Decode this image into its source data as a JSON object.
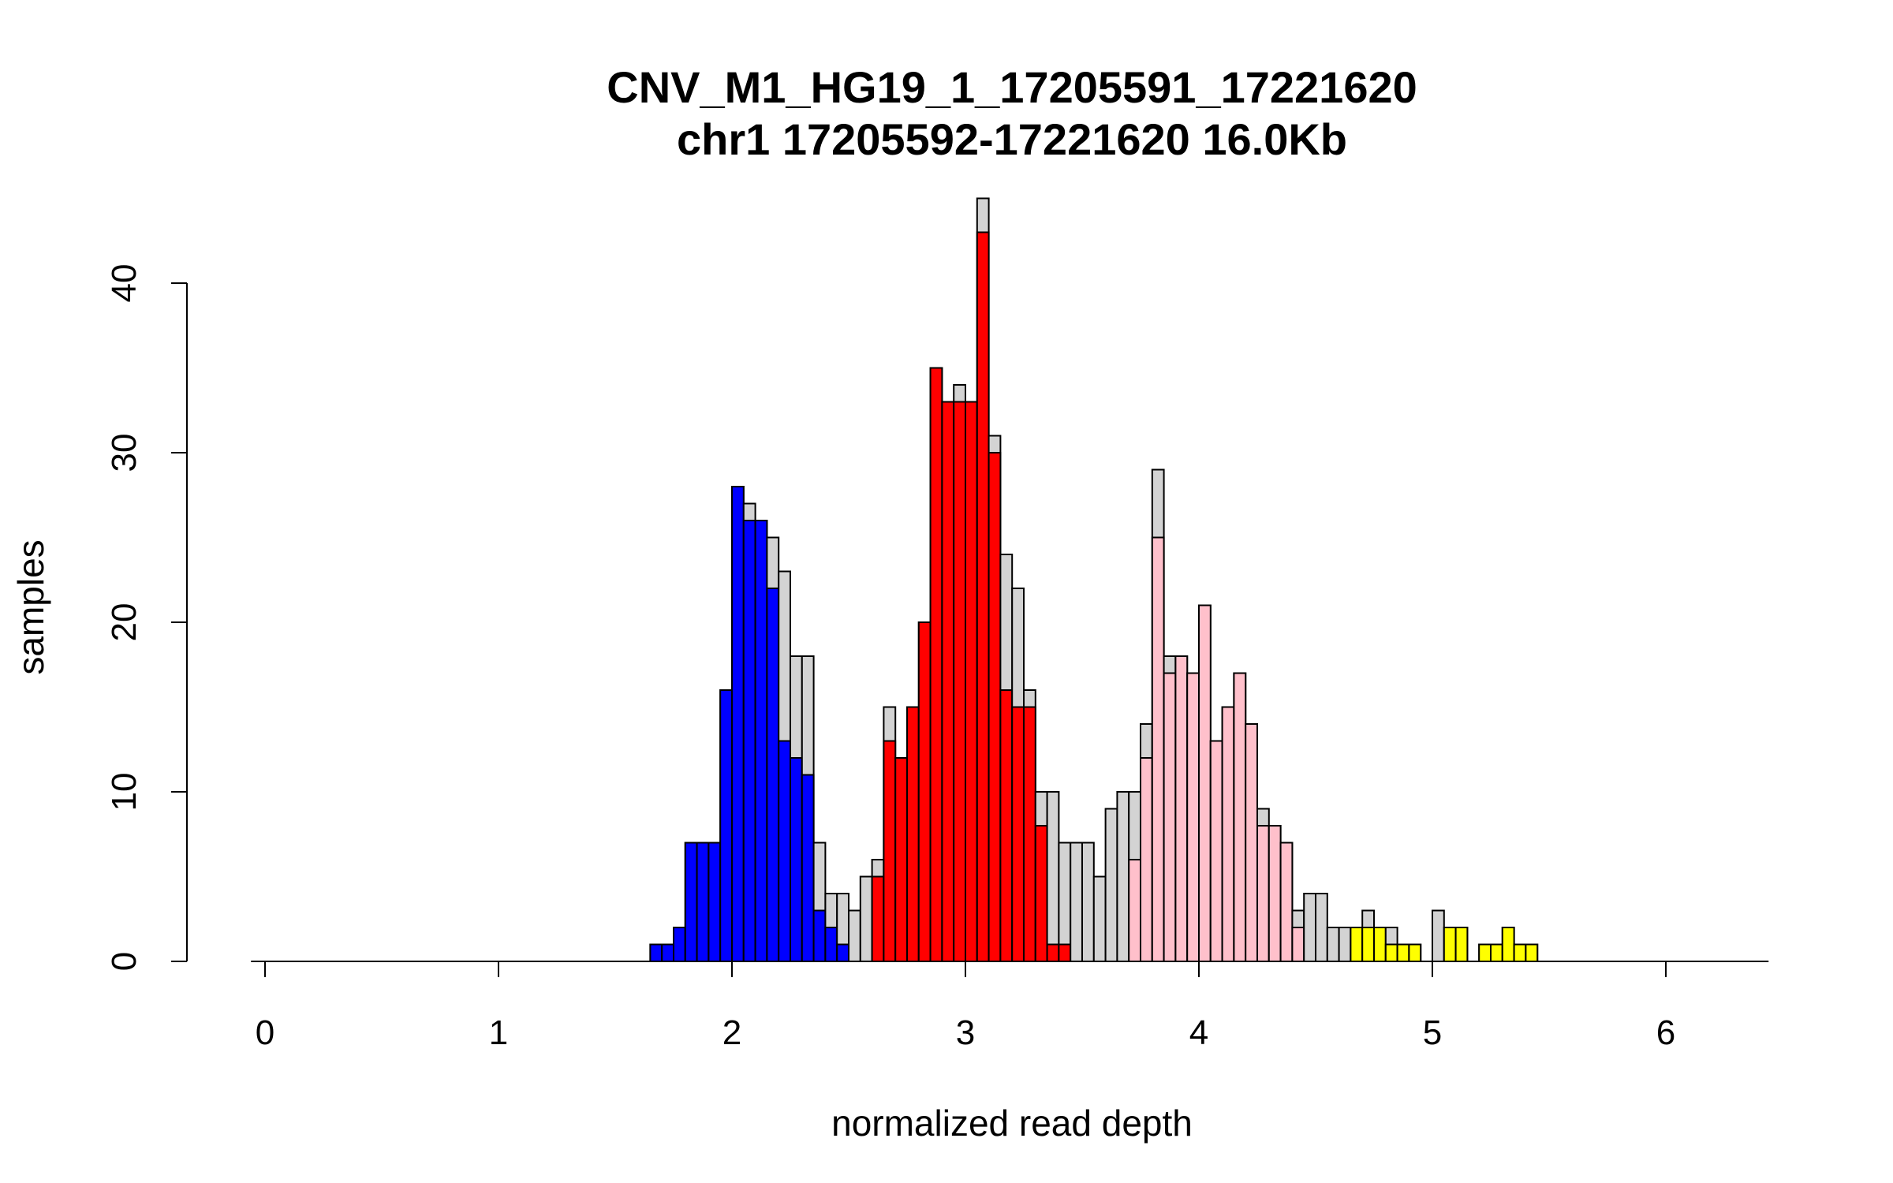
{
  "chart_data": {
    "type": "bar",
    "subtype": "overlaid-histogram",
    "title": "CNV_M1_HG19_1_17205591_17221620",
    "subtitle": "chr1 17205592-17221620 16.0Kb",
    "xlabel": "normalized read depth",
    "ylabel": "samples",
    "xlim": [
      0,
      6.4
    ],
    "ylim": [
      0,
      45
    ],
    "x_ticks": [
      0,
      1,
      2,
      3,
      4,
      5,
      6
    ],
    "y_ticks": [
      0,
      10,
      20,
      30,
      40
    ],
    "bin_width": 0.05,
    "grid": false,
    "legend": "none",
    "colors": {
      "total": "#d3d3d3",
      "blue": "#0000ff",
      "red": "#ff0000",
      "pink": "#ffc0cb",
      "yellow": "#ffff00",
      "stroke": "#000000",
      "background": "#ffffff"
    },
    "bins": [
      {
        "x": 1.65,
        "total": 1,
        "value": 1,
        "color": "blue"
      },
      {
        "x": 1.7,
        "total": 1,
        "value": 1,
        "color": "blue"
      },
      {
        "x": 1.75,
        "total": 2,
        "value": 2,
        "color": "blue"
      },
      {
        "x": 1.8,
        "total": 7,
        "value": 7,
        "color": "blue"
      },
      {
        "x": 1.85,
        "total": 7,
        "value": 7,
        "color": "blue"
      },
      {
        "x": 1.9,
        "total": 7,
        "value": 7,
        "color": "blue"
      },
      {
        "x": 1.95,
        "total": 16,
        "value": 16,
        "color": "blue"
      },
      {
        "x": 2.0,
        "total": 28,
        "value": 28,
        "color": "blue"
      },
      {
        "x": 2.05,
        "total": 27,
        "value": 26,
        "color": "blue"
      },
      {
        "x": 2.1,
        "total": 26,
        "value": 26,
        "color": "blue"
      },
      {
        "x": 2.15,
        "total": 25,
        "value": 22,
        "color": "blue"
      },
      {
        "x": 2.2,
        "total": 23,
        "value": 13,
        "color": "blue"
      },
      {
        "x": 2.25,
        "total": 18,
        "value": 12,
        "color": "blue"
      },
      {
        "x": 2.3,
        "total": 18,
        "value": 11,
        "color": "blue"
      },
      {
        "x": 2.35,
        "total": 7,
        "value": 3,
        "color": "blue"
      },
      {
        "x": 2.4,
        "total": 4,
        "value": 2,
        "color": "blue"
      },
      {
        "x": 2.45,
        "total": 4,
        "value": 1,
        "color": "blue"
      },
      {
        "x": 2.5,
        "total": 3,
        "value": 0,
        "color": "none"
      },
      {
        "x": 2.55,
        "total": 5,
        "value": 0,
        "color": "none"
      },
      {
        "x": 2.6,
        "total": 6,
        "value": 5,
        "color": "red"
      },
      {
        "x": 2.65,
        "total": 15,
        "value": 13,
        "color": "red"
      },
      {
        "x": 2.7,
        "total": 12,
        "value": 12,
        "color": "red"
      },
      {
        "x": 2.75,
        "total": 15,
        "value": 15,
        "color": "red"
      },
      {
        "x": 2.8,
        "total": 20,
        "value": 20,
        "color": "red"
      },
      {
        "x": 2.85,
        "total": 35,
        "value": 35,
        "color": "red"
      },
      {
        "x": 2.9,
        "total": 33,
        "value": 33,
        "color": "red"
      },
      {
        "x": 2.95,
        "total": 34,
        "value": 33,
        "color": "red"
      },
      {
        "x": 3.0,
        "total": 33,
        "value": 33,
        "color": "red"
      },
      {
        "x": 3.05,
        "total": 45,
        "value": 43,
        "color": "red"
      },
      {
        "x": 3.1,
        "total": 31,
        "value": 30,
        "color": "red"
      },
      {
        "x": 3.15,
        "total": 24,
        "value": 16,
        "color": "red"
      },
      {
        "x": 3.2,
        "total": 22,
        "value": 15,
        "color": "red"
      },
      {
        "x": 3.25,
        "total": 16,
        "value": 15,
        "color": "red"
      },
      {
        "x": 3.3,
        "total": 10,
        "value": 8,
        "color": "red"
      },
      {
        "x": 3.35,
        "total": 10,
        "value": 1,
        "color": "red"
      },
      {
        "x": 3.4,
        "total": 7,
        "value": 1,
        "color": "red"
      },
      {
        "x": 3.45,
        "total": 7,
        "value": 0,
        "color": "none"
      },
      {
        "x": 3.5,
        "total": 7,
        "value": 0,
        "color": "none"
      },
      {
        "x": 3.55,
        "total": 5,
        "value": 0,
        "color": "none"
      },
      {
        "x": 3.6,
        "total": 9,
        "value": 0,
        "color": "none"
      },
      {
        "x": 3.65,
        "total": 10,
        "value": 0,
        "color": "none"
      },
      {
        "x": 3.7,
        "total": 10,
        "value": 6,
        "color": "pink"
      },
      {
        "x": 3.75,
        "total": 14,
        "value": 12,
        "color": "pink"
      },
      {
        "x": 3.8,
        "total": 29,
        "value": 25,
        "color": "pink"
      },
      {
        "x": 3.85,
        "total": 18,
        "value": 17,
        "color": "pink"
      },
      {
        "x": 3.9,
        "total": 18,
        "value": 18,
        "color": "pink"
      },
      {
        "x": 3.95,
        "total": 17,
        "value": 17,
        "color": "pink"
      },
      {
        "x": 4.0,
        "total": 21,
        "value": 21,
        "color": "pink"
      },
      {
        "x": 4.05,
        "total": 13,
        "value": 13,
        "color": "pink"
      },
      {
        "x": 4.1,
        "total": 15,
        "value": 15,
        "color": "pink"
      },
      {
        "x": 4.15,
        "total": 17,
        "value": 17,
        "color": "pink"
      },
      {
        "x": 4.2,
        "total": 14,
        "value": 14,
        "color": "pink"
      },
      {
        "x": 4.25,
        "total": 9,
        "value": 8,
        "color": "pink"
      },
      {
        "x": 4.3,
        "total": 8,
        "value": 8,
        "color": "pink"
      },
      {
        "x": 4.35,
        "total": 7,
        "value": 7,
        "color": "pink"
      },
      {
        "x": 4.4,
        "total": 3,
        "value": 2,
        "color": "pink"
      },
      {
        "x": 4.45,
        "total": 4,
        "value": 0,
        "color": "none"
      },
      {
        "x": 4.5,
        "total": 4,
        "value": 0,
        "color": "none"
      },
      {
        "x": 4.55,
        "total": 2,
        "value": 0,
        "color": "none"
      },
      {
        "x": 4.6,
        "total": 2,
        "value": 0,
        "color": "none"
      },
      {
        "x": 4.65,
        "total": 2,
        "value": 2,
        "color": "yellow"
      },
      {
        "x": 4.7,
        "total": 3,
        "value": 2,
        "color": "yellow"
      },
      {
        "x": 4.75,
        "total": 2,
        "value": 2,
        "color": "yellow"
      },
      {
        "x": 4.8,
        "total": 2,
        "value": 1,
        "color": "yellow"
      },
      {
        "x": 4.85,
        "total": 1,
        "value": 1,
        "color": "yellow"
      },
      {
        "x": 4.9,
        "total": 1,
        "value": 1,
        "color": "yellow"
      },
      {
        "x": 5.0,
        "total": 3,
        "value": 0,
        "color": "none"
      },
      {
        "x": 5.05,
        "total": 2,
        "value": 2,
        "color": "yellow"
      },
      {
        "x": 5.1,
        "total": 2,
        "value": 2,
        "color": "yellow"
      },
      {
        "x": 5.2,
        "total": 1,
        "value": 1,
        "color": "yellow"
      },
      {
        "x": 5.25,
        "total": 1,
        "value": 1,
        "color": "yellow"
      },
      {
        "x": 5.3,
        "total": 2,
        "value": 2,
        "color": "yellow"
      },
      {
        "x": 5.35,
        "total": 1,
        "value": 1,
        "color": "yellow"
      },
      {
        "x": 5.4,
        "total": 1,
        "value": 1,
        "color": "yellow"
      }
    ]
  }
}
